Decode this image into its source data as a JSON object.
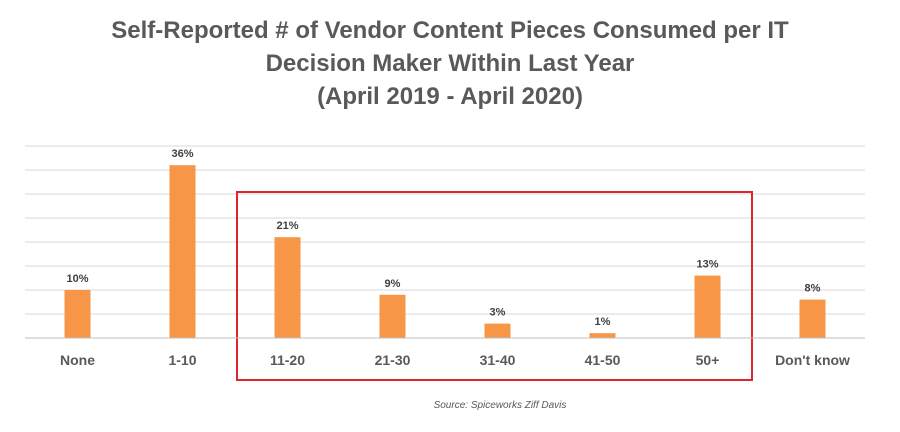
{
  "chart_data": {
    "type": "bar",
    "title_lines": [
      "Self-Reported # of Vendor Content Pieces Consumed per IT",
      "Decision Maker Within Last Year",
      "(April 2019 - April 2020)"
    ],
    "categories": [
      "None",
      "1-10",
      "11-20",
      "21-30",
      "31-40",
      "41-50",
      "50+",
      "Don't know"
    ],
    "values": [
      10,
      36,
      21,
      9,
      3,
      1,
      13,
      8
    ],
    "value_labels": [
      "10%",
      "36%",
      "21%",
      "9%",
      "3%",
      "1%",
      "13%",
      "8%"
    ],
    "ylim": [
      0,
      40
    ],
    "grid": true,
    "bar_color": "#F79646",
    "highlight": {
      "categories": [
        "11-20",
        "21-30",
        "31-40",
        "41-50",
        "50+"
      ],
      "color": "#E0242B"
    }
  },
  "source": "Source: Spiceworks Ziff Davis"
}
